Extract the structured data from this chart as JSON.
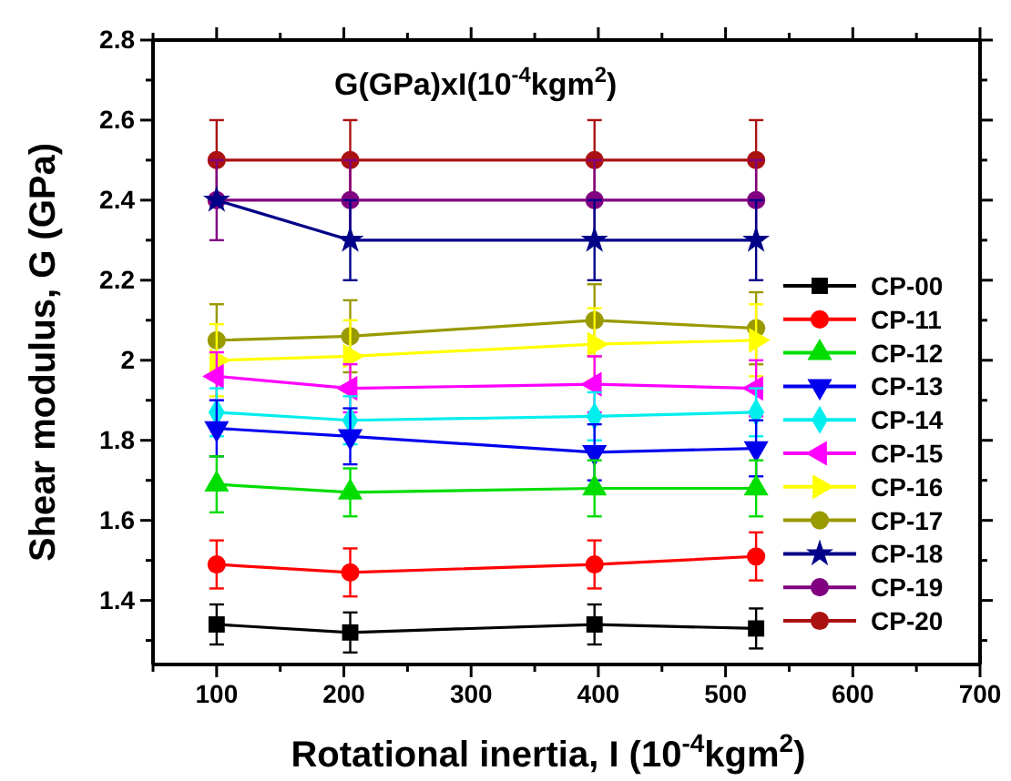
{
  "chart_data": {
    "type": "line",
    "title": "G(GPa)xI(10$^{-4}$kgm$^{2}$)",
    "xlabel": "Rotational inertia, I (10$^{-4}$kgm$^{2}$)",
    "ylabel": "Shear modulus, G (GPa)",
    "x": [
      100,
      205,
      397,
      524
    ],
    "xlim": [
      50,
      700
    ],
    "xticks": [
      {
        "value": 50,
        "label": null
      },
      100,
      {
        "value": 150,
        "label": null
      },
      200,
      {
        "value": 250,
        "label": null
      },
      300,
      {
        "value": 350,
        "label": null
      },
      400,
      {
        "value": 450,
        "label": null
      },
      500,
      {
        "value": 550,
        "label": null
      },
      600,
      {
        "value": 650,
        "label": null
      },
      700
    ],
    "ylim": [
      1.24,
      2.8
    ],
    "yticks": [
      {
        "value": 1.3,
        "label": null
      },
      1.4,
      {
        "value": 1.5,
        "label": null
      },
      1.6,
      {
        "value": 1.7,
        "label": null
      },
      1.8,
      {
        "value": 1.9,
        "label": null
      },
      2.0,
      {
        "value": 2.1,
        "label": null
      },
      2.2,
      {
        "value": 2.3,
        "label": null
      },
      2.4,
      {
        "value": 2.5,
        "label": null
      },
      2.6,
      {
        "value": 2.7,
        "label": null
      },
      2.8
    ],
    "grid": false,
    "legend": "right",
    "series": [
      {
        "name": "CP-00",
        "color": "#000000",
        "marker": "square",
        "values": [
          1.34,
          1.32,
          1.34,
          1.33
        ],
        "errors": [
          0.05,
          0.05,
          0.05,
          0.05
        ]
      },
      {
        "name": "CP-11",
        "color": "#ff0000",
        "marker": "circle",
        "values": [
          1.49,
          1.47,
          1.49,
          1.51
        ],
        "errors": [
          0.06,
          0.06,
          0.06,
          0.06
        ]
      },
      {
        "name": "CP-12",
        "color": "#00dd00",
        "marker": "triangle",
        "values": [
          1.69,
          1.67,
          1.68,
          1.68
        ],
        "errors": [
          0.07,
          0.06,
          0.07,
          0.07
        ]
      },
      {
        "name": "CP-13",
        "color": "#0000ee",
        "marker": "triangle-down",
        "values": [
          1.83,
          1.81,
          1.77,
          1.78
        ],
        "errors": [
          0.07,
          0.07,
          0.07,
          0.07
        ]
      },
      {
        "name": "CP-14",
        "color": "#00eeee",
        "marker": "diamond",
        "values": [
          1.87,
          1.85,
          1.86,
          1.87
        ],
        "errors": [
          0.06,
          0.06,
          0.06,
          0.06
        ]
      },
      {
        "name": "CP-15",
        "color": "#ff00ff",
        "marker": "triangle-left",
        "values": [
          1.96,
          1.93,
          1.94,
          1.93
        ],
        "errors": [
          0.06,
          0.06,
          0.07,
          0.07
        ]
      },
      {
        "name": "CP-16",
        "color": "#ffff00",
        "marker": "triangle-right",
        "values": [
          2.0,
          2.01,
          2.04,
          2.05
        ],
        "errors": [
          0.09,
          0.09,
          0.09,
          0.09
        ]
      },
      {
        "name": "CP-17",
        "color": "#999900",
        "marker": "circle",
        "values": [
          2.05,
          2.06,
          2.1,
          2.08
        ],
        "errors": [
          0.09,
          0.09,
          0.09,
          0.09
        ]
      },
      {
        "name": "CP-18",
        "color": "#000088",
        "marker": "star",
        "values": [
          2.4,
          2.3,
          2.3,
          2.3
        ],
        "errors": [
          null,
          0.1,
          0.1,
          0.1
        ]
      },
      {
        "name": "CP-19",
        "color": "#800080",
        "marker": "circle",
        "values": [
          2.4,
          2.4,
          2.4,
          2.4
        ],
        "errors": [
          0.1,
          0.1,
          0.1,
          0.1
        ]
      },
      {
        "name": "CP-20",
        "color": "#aa1111",
        "marker": "circle",
        "values": [
          2.5,
          2.5,
          2.5,
          2.5
        ],
        "errors": [
          0.1,
          0.1,
          0.1,
          0.1
        ]
      }
    ]
  }
}
